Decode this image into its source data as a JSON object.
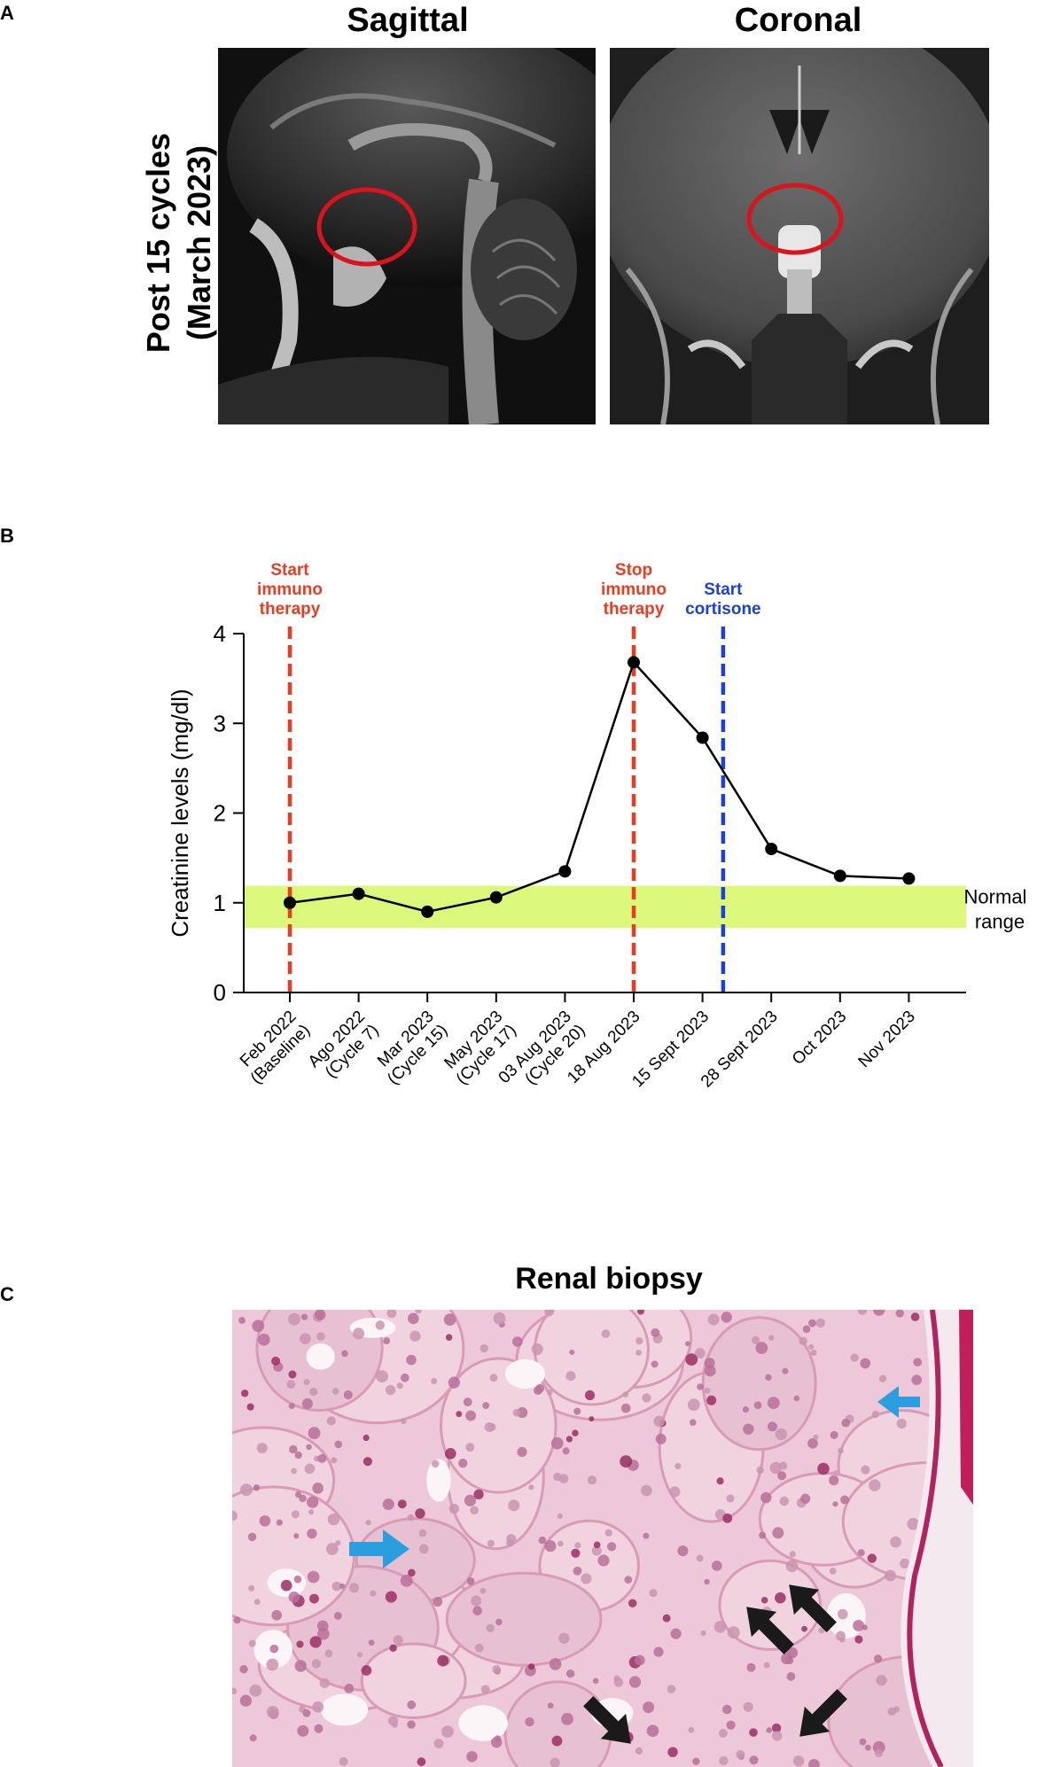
{
  "panel_a": {
    "letter": "A",
    "row_label_line1": "Post 15 cycles",
    "row_label_line2": "(March 2023)",
    "titles": [
      "Sagittal",
      "Coronal"
    ]
  },
  "panel_b": {
    "letter": "B"
  },
  "panel_c": {
    "letter": "C",
    "title": "Renal biopsy"
  },
  "chart_data": {
    "type": "line",
    "title": "",
    "xlabel": "",
    "ylabel": "Creatinine levels (mg/dl)",
    "ylim": [
      0,
      4
    ],
    "yticks": [
      0,
      1,
      2,
      3,
      4
    ],
    "categories": [
      [
        "Feb 2022",
        "(Baseline)"
      ],
      [
        "Ago 2022",
        "(Cycle 7)"
      ],
      [
        "Mar 2023",
        "(Cycle 15)"
      ],
      [
        "May 2023",
        "(Cycle 17)"
      ],
      [
        "03 Aug 2023",
        "(Cycle 20)"
      ],
      [
        "18 Aug 2023"
      ],
      [
        "15 Sept 2023"
      ],
      [
        "28 Sept 2023"
      ],
      [
        "Oct 2023"
      ],
      [
        "Nov 2023"
      ]
    ],
    "series": [
      {
        "values": [
          1.0,
          1.1,
          0.9,
          1.06,
          1.35,
          3.68,
          2.84,
          1.6,
          1.3,
          1.27
        ],
        "color": "#000000"
      }
    ],
    "normal_range": {
      "low": 0.72,
      "high": 1.19,
      "color": "#dcf87a",
      "label_line1": "Normal",
      "label_line2": "range"
    },
    "markers": [
      {
        "category_index": 0,
        "offset": 0,
        "color": "#ee3a1e",
        "lines": [
          "Start",
          "immuno",
          "therapy"
        ]
      },
      {
        "category_index": 5,
        "offset": 0,
        "color": "#ee3a1e",
        "lines": [
          "Stop",
          "immuno",
          "therapy"
        ]
      },
      {
        "category_index": 6,
        "offset": 0.3,
        "color": "#1c3fe0",
        "lines": [
          "Start",
          "cortisone"
        ]
      }
    ],
    "grid": false,
    "legend": "none"
  }
}
